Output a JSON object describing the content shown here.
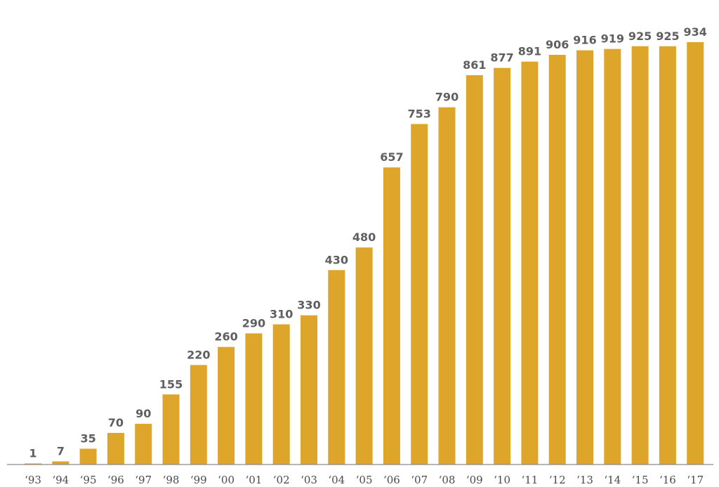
{
  "chart_data": {
    "type": "bar",
    "categories": [
      "‘93",
      "‘94",
      "‘95",
      "‘96",
      "‘97",
      "‘98",
      "‘99",
      "‘00",
      "‘01",
      "‘02",
      "‘03",
      "‘04",
      "‘05",
      "‘06",
      "‘07",
      "‘08",
      "‘09",
      "‘10",
      "‘11",
      "‘12",
      "‘13",
      "‘14",
      "‘15",
      "‘16",
      "‘17"
    ],
    "values": [
      1,
      7,
      35,
      70,
      90,
      155,
      220,
      260,
      290,
      310,
      330,
      430,
      480,
      657,
      753,
      790,
      861,
      877,
      891,
      906,
      916,
      919,
      925,
      925,
      934
    ],
    "data_labels": [
      "1",
      "7",
      "35",
      "70",
      "90",
      "155",
      "220",
      "260",
      "290",
      "310",
      "330",
      "430",
      "480",
      "657",
      "753",
      "790",
      "861",
      "877",
      "891",
      "906",
      "916",
      "919",
      "925",
      "925",
      "934"
    ],
    "title": "",
    "xlabel": "",
    "ylabel": "",
    "ylim": [
      0,
      934
    ],
    "grid": false,
    "legend": "none",
    "colors": {
      "bar": "#DDA62A",
      "axis": "#8a8a8a",
      "data_label": "#5f5f5f",
      "tick_label": "#4a4a4a"
    }
  }
}
